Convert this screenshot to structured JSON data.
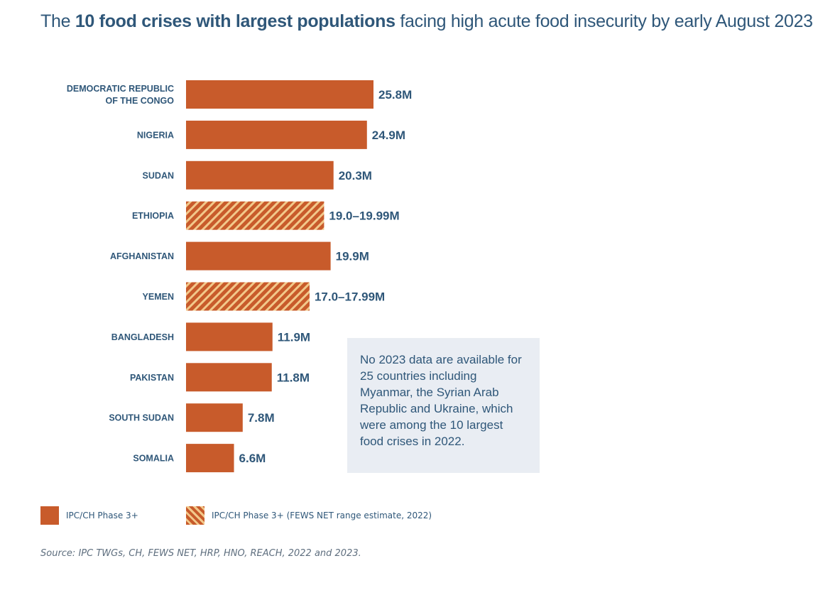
{
  "title_parts": {
    "pre": "The ",
    "bold": "10 food crises with largest populations",
    "post": " facing high acute food insecurity by early August 2023"
  },
  "chart_data": {
    "type": "bar",
    "orientation": "horizontal",
    "title": "The 10 food crises with largest populations facing high acute food insecurity by early August 2023",
    "categories": [
      [
        "DEMOCRATIC REPUBLIC",
        "OF THE CONGO"
      ],
      [
        "NIGERIA"
      ],
      [
        "SUDAN"
      ],
      [
        "ETHIOPIA"
      ],
      [
        "AFGHANISTAN"
      ],
      [
        "YEMEN"
      ],
      [
        "BANGLADESH"
      ],
      [
        "PAKISTAN"
      ],
      [
        "SOUTH SUDAN"
      ],
      [
        "SOMALIA"
      ]
    ],
    "values": [
      25.8,
      24.9,
      20.3,
      19.0,
      19.9,
      17.0,
      11.9,
      11.8,
      7.8,
      6.6
    ],
    "value_labels": [
      "25.8M",
      "24.9M",
      "20.3M",
      "19.0–19.99M",
      "19.9M",
      "17.0–17.99M",
      "11.9M",
      "11.8M",
      "7.8M",
      "6.6M"
    ],
    "estimate": [
      false,
      false,
      false,
      true,
      false,
      true,
      false,
      false,
      false,
      false
    ],
    "unit": "millions of people",
    "xlim": [
      0,
      25.8
    ],
    "grid": false,
    "colors": {
      "solid": "#c85b2b",
      "hatch_light": "#f2c88a",
      "text": "#2f5779"
    }
  },
  "note": "No 2023 data are available for 25 countries including Myanmar, the Syrian Arab Republic and Ukraine, which were among the 10 largest food crises in 2022.",
  "legend": {
    "solid": "IPC/CH Phase 3+",
    "hatch": "IPC/CH Phase 3+ (FEWS NET range estimate, 2022)"
  },
  "source": "Source: IPC TWGs, CH, FEWS NET, HRP, HNO, REACH, 2022 and 2023."
}
